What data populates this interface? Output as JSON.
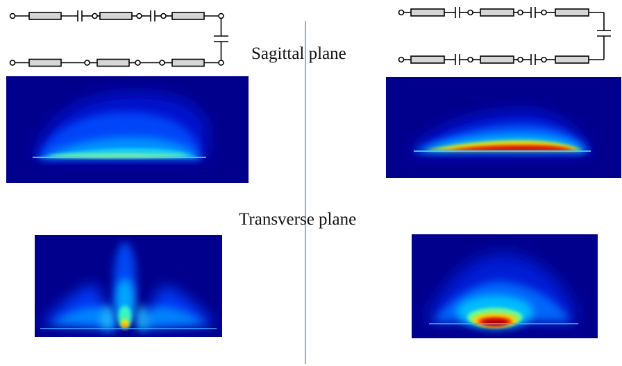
{
  "labels": {
    "sagittal": "Sagittal plane",
    "transverse": "Transverse plane"
  },
  "colors": {
    "field_background": "#00008c",
    "divider": "#7fb4dc",
    "resistor_fill": "#d6d6d6",
    "wire": "#000000"
  },
  "circuits": [
    {
      "name": "left-electrode-circuit",
      "top_row": [
        "resistor",
        "capacitor",
        "resistor",
        "capacitor",
        "resistor"
      ],
      "bottom_row": [
        "resistor",
        "wire",
        "resistor",
        "wire",
        "resistor"
      ],
      "link": "capacitor"
    },
    {
      "name": "right-electrode-circuit",
      "top_row": [
        "resistor",
        "capacitor",
        "resistor",
        "capacitor",
        "resistor"
      ],
      "bottom_row": [
        "resistor",
        "capacitor",
        "resistor",
        "capacitor",
        "resistor"
      ],
      "link": "capacitor"
    }
  ],
  "heatmaps": [
    {
      "name": "sagittal-left-field",
      "pattern": "broad-flat-low"
    },
    {
      "name": "sagittal-right-field",
      "pattern": "flat-lens-high"
    },
    {
      "name": "transverse-left-field",
      "pattern": "three-lobe-low"
    },
    {
      "name": "transverse-right-field",
      "pattern": "central-focus-high"
    }
  ]
}
